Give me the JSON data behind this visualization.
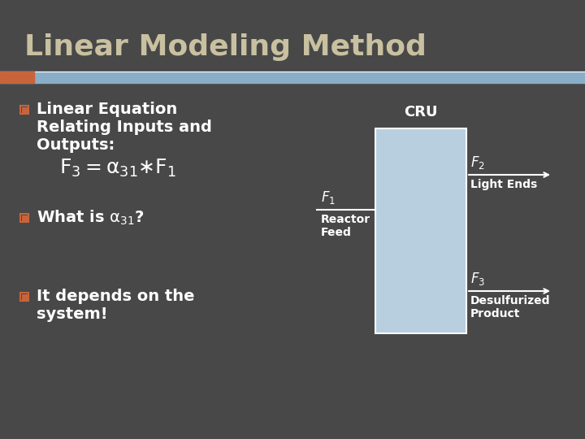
{
  "title": "Linear Modeling Method",
  "title_color": "#c8c0a0",
  "bg_color": "#484848",
  "header_bar_color": "#8aaec8",
  "header_accent_color": "#c8643c",
  "bullet_box_color": "#c8643c",
  "bullet_text_color": "#ffffff",
  "bullet1_line1": "Linear Equation",
  "bullet1_line2": "Relating Inputs and",
  "bullet1_line3": "Outputs:",
  "bullet2_text": "What is α₃₁?",
  "bullet3_line1": "It depends on the",
  "bullet3_line2": "system!",
  "diagram_box_color": "#b8cfe0",
  "diagram_box_edge": "#ffffff",
  "diagram_text_color": "#ffffff",
  "cru_label": "CRU",
  "reactor_feed_label": "Reactor\nFeed",
  "light_ends_label": "Light Ends",
  "desulfurized_label": "Desulfurized\nProduct",
  "figsize": [
    7.2,
    5.4
  ],
  "dpi": 100
}
